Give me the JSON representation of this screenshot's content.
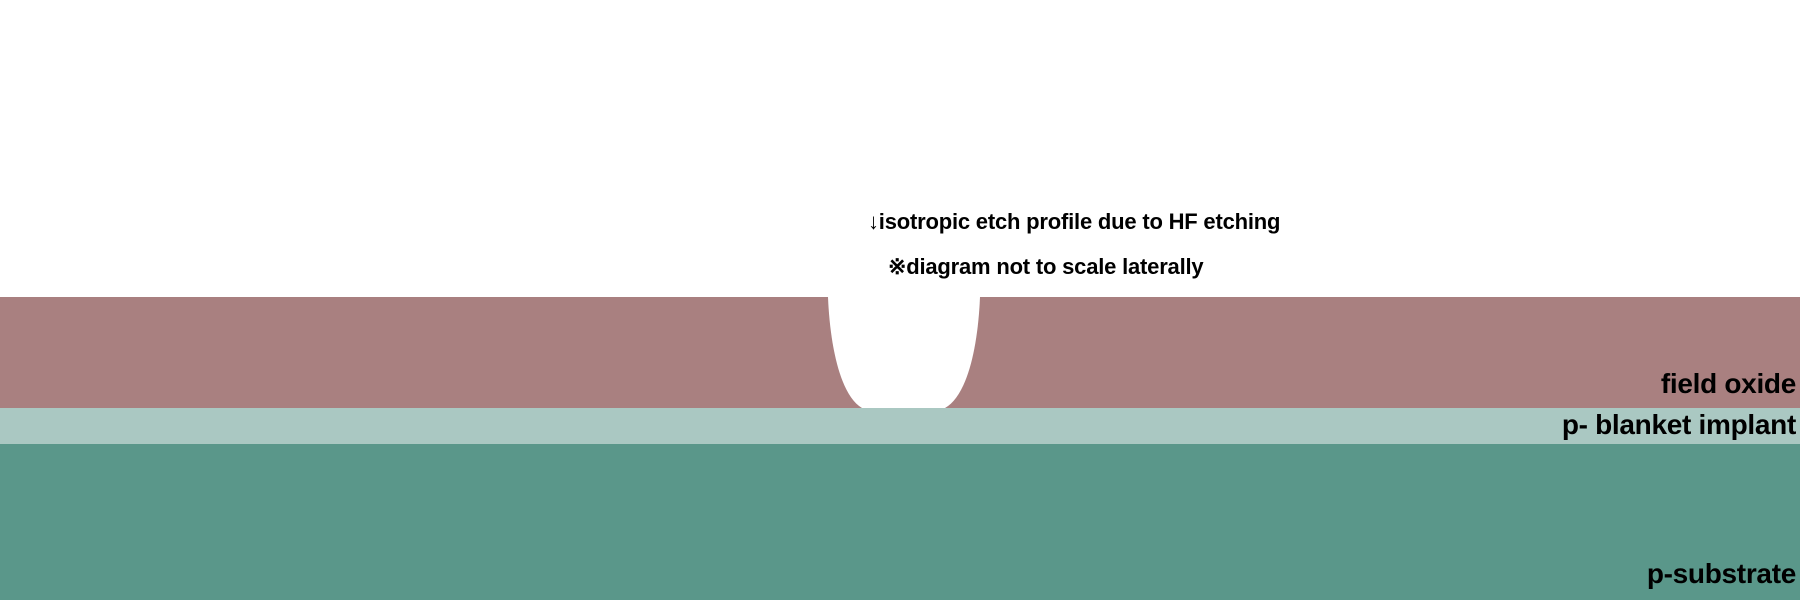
{
  "annotations": {
    "etch_note": "↓isotropic etch profile due to HF etching",
    "scale_note": "※diagram not to scale laterally"
  },
  "layers": {
    "field_oxide": {
      "label": "field oxide",
      "color": "#a98080"
    },
    "blanket_implant": {
      "label": "p- blanket implant",
      "color": "#aac8c2"
    },
    "substrate": {
      "label": "p-substrate",
      "color": "#5a978a"
    }
  },
  "background_color": "#ffffff"
}
